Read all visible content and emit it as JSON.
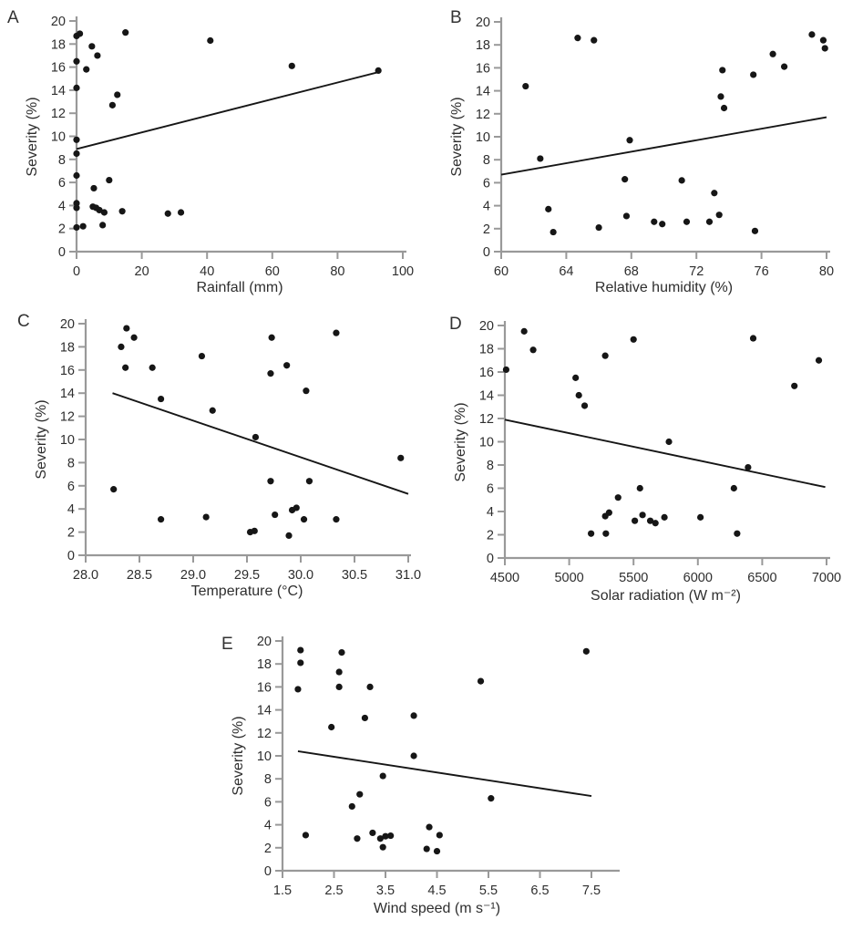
{
  "page": {
    "background": "#ffffff"
  },
  "colors": {
    "axis": "#999999",
    "tick_label": "#2e2e2e",
    "point": "#161616",
    "trend_line": "#161616"
  },
  "chart_data": [
    {
      "type": "scatter",
      "panel": "A",
      "xlabel": "Rainfall (mm)",
      "ylabel": "Severity (%)",
      "xlim": [
        0,
        100
      ],
      "ylim": [
        0,
        20
      ],
      "xticks": [
        0,
        20,
        40,
        60,
        80,
        100
      ],
      "xtick_labels": [
        "0",
        "20",
        "40",
        "60",
        "80",
        "100"
      ],
      "yticks": [
        0,
        2,
        4,
        6,
        8,
        10,
        12,
        14,
        16,
        18,
        20
      ],
      "ytick_labels": [
        "0",
        "2",
        "4",
        "6",
        "8",
        "10",
        "12",
        "14",
        "16",
        "18",
        "20"
      ],
      "grid": false,
      "legend": null,
      "points": [
        [
          0,
          18.7
        ],
        [
          1,
          18.9
        ],
        [
          15,
          19.0
        ],
        [
          41,
          18.3
        ],
        [
          4.7,
          17.8
        ],
        [
          6.4,
          17.0
        ],
        [
          0,
          16.5
        ],
        [
          3,
          15.8
        ],
        [
          66,
          16.1
        ],
        [
          92.5,
          15.7
        ],
        [
          0,
          14.2
        ],
        [
          12.5,
          13.6
        ],
        [
          11,
          12.7
        ],
        [
          0,
          9.7
        ],
        [
          0,
          8.5
        ],
        [
          0,
          6.6
        ],
        [
          10,
          6.2
        ],
        [
          5.3,
          5.5
        ],
        [
          0,
          4.2
        ],
        [
          0,
          3.8
        ],
        [
          5,
          3.9
        ],
        [
          6,
          3.8
        ],
        [
          7,
          3.6
        ],
        [
          8.5,
          3.4
        ],
        [
          14,
          3.5
        ],
        [
          28,
          3.3
        ],
        [
          32,
          3.4
        ],
        [
          0,
          2.1
        ],
        [
          2,
          2.2
        ],
        [
          8,
          2.3
        ]
      ],
      "trend": {
        "x1": 0,
        "y1": 8.9,
        "x2": 93,
        "y2": 15.6
      }
    },
    {
      "type": "scatter",
      "panel": "B",
      "xlabel": "Relative humidity (%)",
      "ylabel": "Severity (%)",
      "xlim": [
        60,
        80
      ],
      "ylim": [
        0,
        20
      ],
      "xticks": [
        60,
        64,
        68,
        72,
        76,
        80
      ],
      "xtick_labels": [
        "60",
        "64",
        "68",
        "72",
        "76",
        "80"
      ],
      "yticks": [
        0,
        2,
        4,
        6,
        8,
        10,
        12,
        14,
        16,
        18,
        20
      ],
      "ytick_labels": [
        "0",
        "2",
        "4",
        "6",
        "8",
        "10",
        "12",
        "14",
        "16",
        "18",
        "20"
      ],
      "grid": false,
      "legend": null,
      "points": [
        [
          64.7,
          18.6
        ],
        [
          65.7,
          18.4
        ],
        [
          79.1,
          18.9
        ],
        [
          79.8,
          18.4
        ],
        [
          79.9,
          17.7
        ],
        [
          76.7,
          17.2
        ],
        [
          77.4,
          16.1
        ],
        [
          73.6,
          15.8
        ],
        [
          75.5,
          15.4
        ],
        [
          61.5,
          14.4
        ],
        [
          73.5,
          13.5
        ],
        [
          73.7,
          12.5
        ],
        [
          67.9,
          9.7
        ],
        [
          62.4,
          8.1
        ],
        [
          67.6,
          6.3
        ],
        [
          71.1,
          6.2
        ],
        [
          73.1,
          5.1
        ],
        [
          62.9,
          3.7
        ],
        [
          67.7,
          3.1
        ],
        [
          73.4,
          3.2
        ],
        [
          69.4,
          2.6
        ],
        [
          71.4,
          2.6
        ],
        [
          72.8,
          2.6
        ],
        [
          69.9,
          2.4
        ],
        [
          66.0,
          2.1
        ],
        [
          75.6,
          1.8
        ],
        [
          63.2,
          1.7
        ]
      ],
      "trend": {
        "x1": 60,
        "y1": 6.7,
        "x2": 80,
        "y2": 11.7
      }
    },
    {
      "type": "scatter",
      "panel": "C",
      "xlabel": "Temperature (°C)",
      "ylabel": "Severity (%)",
      "xlim": [
        28.0,
        31.0
      ],
      "ylim": [
        0,
        20
      ],
      "xticks": [
        28.0,
        28.5,
        29.0,
        29.5,
        30.0,
        30.5,
        31.0
      ],
      "xtick_labels": [
        "28.0",
        "28.5",
        "29.0",
        "29.5",
        "30.0",
        "30.5",
        "31.0"
      ],
      "yticks": [
        0,
        2,
        4,
        6,
        8,
        10,
        12,
        14,
        16,
        18,
        20
      ],
      "ytick_labels": [
        "0",
        "2",
        "4",
        "6",
        "8",
        "10",
        "12",
        "14",
        "16",
        "18",
        "20"
      ],
      "grid": false,
      "legend": null,
      "points": [
        [
          28.38,
          19.6
        ],
        [
          28.45,
          18.8
        ],
        [
          28.33,
          18.0
        ],
        [
          30.33,
          19.2
        ],
        [
          29.73,
          18.8
        ],
        [
          29.08,
          17.2
        ],
        [
          28.37,
          16.2
        ],
        [
          28.62,
          16.2
        ],
        [
          29.87,
          16.4
        ],
        [
          29.72,
          15.7
        ],
        [
          28.7,
          13.5
        ],
        [
          29.18,
          12.5
        ],
        [
          30.05,
          14.2
        ],
        [
          29.58,
          10.2
        ],
        [
          30.93,
          8.4
        ],
        [
          28.26,
          5.7
        ],
        [
          29.72,
          6.4
        ],
        [
          30.08,
          6.4
        ],
        [
          28.7,
          3.1
        ],
        [
          29.12,
          3.3
        ],
        [
          29.76,
          3.5
        ],
        [
          29.92,
          3.9
        ],
        [
          29.96,
          4.1
        ],
        [
          30.03,
          3.1
        ],
        [
          30.33,
          3.1
        ],
        [
          29.53,
          2.0
        ],
        [
          29.57,
          2.1
        ],
        [
          29.89,
          1.7
        ]
      ],
      "trend": {
        "x1": 28.25,
        "y1": 14.0,
        "x2": 31.0,
        "y2": 5.3
      }
    },
    {
      "type": "scatter",
      "panel": "D",
      "xlabel": "Solar radiation (W m⁻²)",
      "ylabel": "Severity (%)",
      "xlim": [
        4500,
        7000
      ],
      "ylim": [
        0,
        20
      ],
      "xticks": [
        4500,
        5000,
        5500,
        6000,
        6500,
        7000
      ],
      "xtick_labels": [
        "4500",
        "5000",
        "5500",
        "6000",
        "6500",
        "7000"
      ],
      "yticks": [
        0,
        2,
        4,
        6,
        8,
        10,
        12,
        14,
        16,
        18,
        20
      ],
      "ytick_labels": [
        "0",
        "2",
        "4",
        "6",
        "8",
        "10",
        "12",
        "14",
        "16",
        "18",
        "20"
      ],
      "grid": false,
      "legend": null,
      "points": [
        [
          4650,
          19.5
        ],
        [
          4720,
          17.9
        ],
        [
          4510,
          16.2
        ],
        [
          5500,
          18.8
        ],
        [
          5280,
          17.4
        ],
        [
          6430,
          18.9
        ],
        [
          6940,
          17.0
        ],
        [
          6750,
          14.8
        ],
        [
          5050,
          15.5
        ],
        [
          5075,
          14.0
        ],
        [
          5120,
          13.1
        ],
        [
          5775,
          10.0
        ],
        [
          6390,
          7.8
        ],
        [
          5550,
          6.0
        ],
        [
          6280,
          6.0
        ],
        [
          5380,
          5.2
        ],
        [
          5280,
          3.6
        ],
        [
          5310,
          3.9
        ],
        [
          5510,
          3.2
        ],
        [
          5570,
          3.7
        ],
        [
          5630,
          3.2
        ],
        [
          5670,
          3.0
        ],
        [
          5740,
          3.5
        ],
        [
          6020,
          3.5
        ],
        [
          5170,
          2.1
        ],
        [
          5285,
          2.1
        ],
        [
          6305,
          2.1
        ]
      ],
      "trend": {
        "x1": 4500,
        "y1": 11.9,
        "x2": 6990,
        "y2": 6.1
      }
    },
    {
      "type": "scatter",
      "panel": "E",
      "xlabel": "Wind speed (m s⁻¹)",
      "ylabel": "Severity (%)",
      "xlim": [
        1.5,
        7.5
      ],
      "ylim": [
        0,
        20
      ],
      "xticks": [
        1.5,
        2.5,
        3.5,
        4.5,
        5.5,
        6.5,
        7.5
      ],
      "xtick_labels": [
        "1.5",
        "2.5",
        "3.5",
        "4.5",
        "5.5",
        "6.5",
        "7.5"
      ],
      "yticks": [
        0,
        2,
        4,
        6,
        8,
        10,
        12,
        14,
        16,
        18,
        20
      ],
      "ytick_labels": [
        "0",
        "2",
        "4",
        "6",
        "8",
        "10",
        "12",
        "14",
        "16",
        "18",
        "20"
      ],
      "grid": false,
      "legend": null,
      "points": [
        [
          1.85,
          19.2
        ],
        [
          1.85,
          18.1
        ],
        [
          1.8,
          15.8
        ],
        [
          2.65,
          19.0
        ],
        [
          2.6,
          17.3
        ],
        [
          2.6,
          16.0
        ],
        [
          3.2,
          16.0
        ],
        [
          2.45,
          12.5
        ],
        [
          3.1,
          13.3
        ],
        [
          4.05,
          13.5
        ],
        [
          4.05,
          10.0
        ],
        [
          3.45,
          8.25
        ],
        [
          3.0,
          6.65
        ],
        [
          2.85,
          5.6
        ],
        [
          5.55,
          6.3
        ],
        [
          5.35,
          16.5
        ],
        [
          7.4,
          19.1
        ],
        [
          1.95,
          3.1
        ],
        [
          2.95,
          2.8
        ],
        [
          3.25,
          3.3
        ],
        [
          3.4,
          2.8
        ],
        [
          3.5,
          3.0
        ],
        [
          3.6,
          3.05
        ],
        [
          3.45,
          2.05
        ],
        [
          4.35,
          3.8
        ],
        [
          4.55,
          3.1
        ],
        [
          4.3,
          1.9
        ],
        [
          4.5,
          1.7
        ]
      ],
      "trend": {
        "x1": 1.8,
        "y1": 10.4,
        "x2": 7.5,
        "y2": 6.5
      }
    }
  ]
}
